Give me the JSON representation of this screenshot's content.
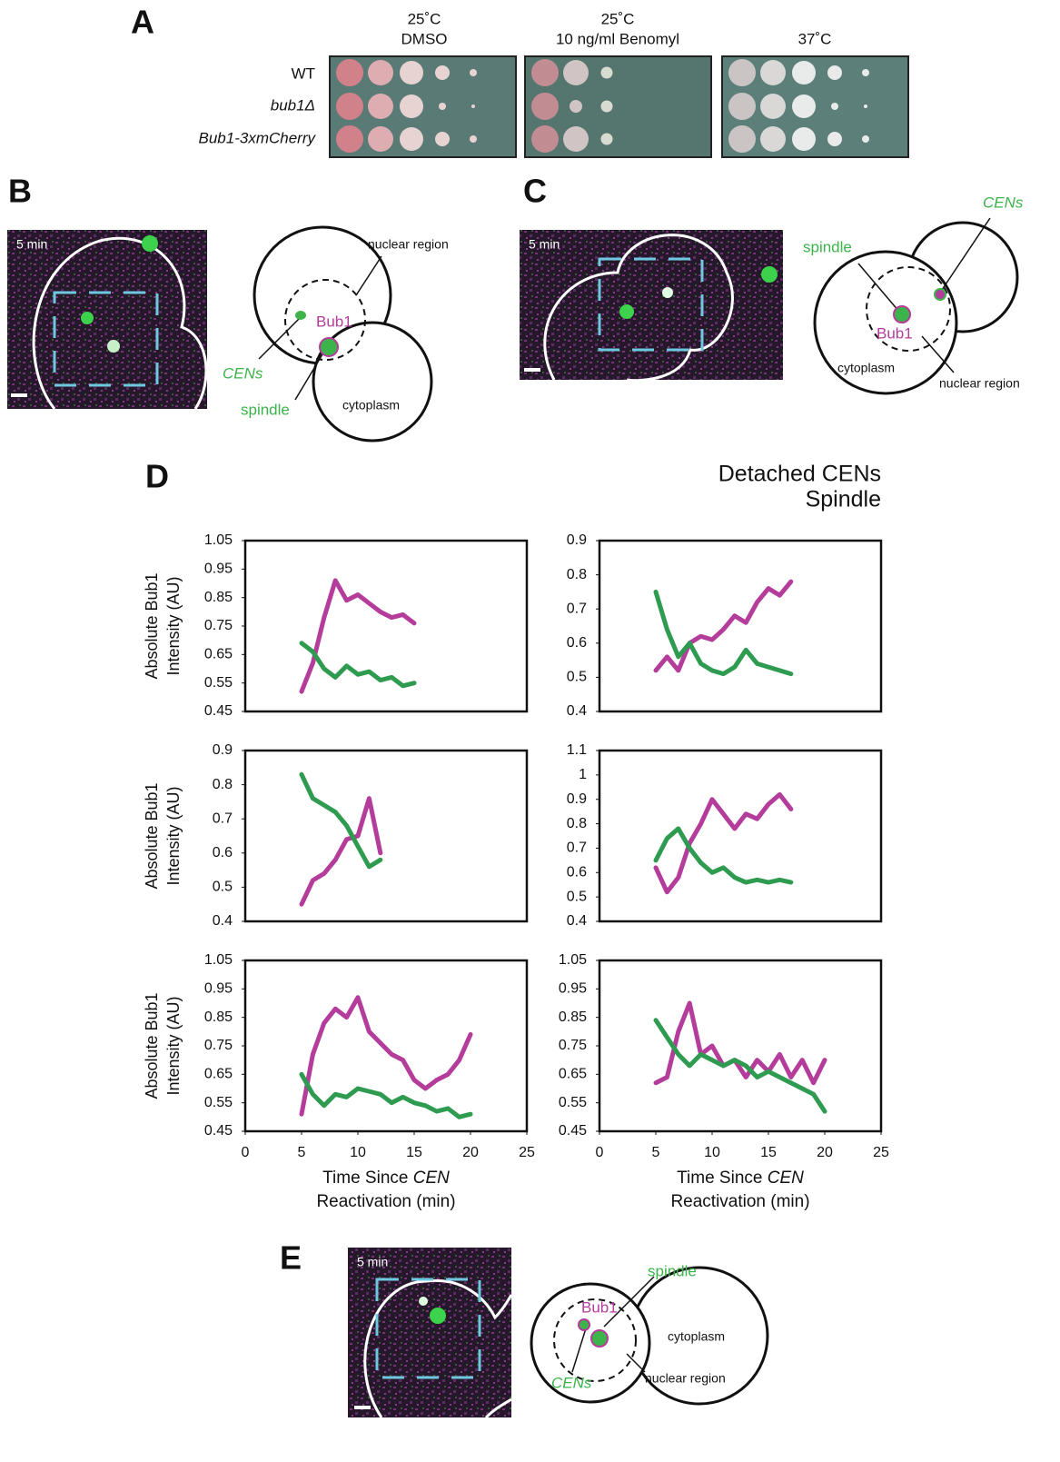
{
  "panel_A": {
    "label": "A",
    "columns": [
      [
        "25˚C",
        "DMSO"
      ],
      [
        "25˚C",
        "10 ng/ml Benomyl"
      ],
      [
        "37˚C"
      ]
    ],
    "rows": [
      "WT",
      "bub1Δ",
      "Bub1-3xmCherry"
    ]
  },
  "panel_B": {
    "label": "B",
    "time": "5 min",
    "nuclear": "nuclear region",
    "bub1": "Bub1",
    "cens": "CENs",
    "spindle": "spindle",
    "cytoplasm": "cytoplasm"
  },
  "panel_C": {
    "label": "C",
    "time": "5 min",
    "cens": "CENs",
    "spindle": "spindle",
    "bub1": "Bub1",
    "cytoplasm": "cytoplasm",
    "nuclear": "nuclear region"
  },
  "panel_D": {
    "label": "D"
  },
  "panel_E": {
    "label": "E",
    "time": "5 min",
    "spindle": "spindle",
    "bub1": "Bub1",
    "cytoplasm": "cytoplasm",
    "cens": "CENs",
    "nuclear": "nuclear region"
  },
  "chart_data": [
    {
      "type": "line",
      "y_label": [
        "Absolute Bub1",
        "Intensity (AU)"
      ],
      "xlim": [
        0,
        25
      ],
      "ylim": [
        0.45,
        1.05
      ],
      "yticks": [
        0.45,
        0.55,
        0.65,
        0.75,
        0.85,
        0.95,
        1.05
      ],
      "x": [
        5,
        6,
        7,
        8,
        9,
        10,
        11,
        12,
        13,
        14,
        15
      ],
      "series": [
        {
          "name": "Detached CENs",
          "color": "#b43c9a",
          "values": [
            0.52,
            0.62,
            0.78,
            0.91,
            0.84,
            0.86,
            0.83,
            0.8,
            0.78,
            0.79,
            0.76
          ]
        },
        {
          "name": "Spindle",
          "color": "#2e9b50",
          "values": [
            0.69,
            0.66,
            0.6,
            0.57,
            0.61,
            0.58,
            0.59,
            0.56,
            0.57,
            0.54,
            0.55
          ]
        }
      ]
    },
    {
      "type": "line",
      "xlim": [
        0,
        25
      ],
      "ylim": [
        0.4,
        0.9
      ],
      "yticks": [
        0.4,
        0.5,
        0.6,
        0.7,
        0.8,
        0.9
      ],
      "x": [
        5,
        6,
        7,
        8,
        9,
        10,
        11,
        12,
        13,
        14,
        15,
        16,
        17
      ],
      "series": [
        {
          "name": "Detached CENs",
          "color": "#b43c9a",
          "values": [
            0.52,
            0.56,
            0.52,
            0.6,
            0.62,
            0.61,
            0.64,
            0.68,
            0.66,
            0.72,
            0.76,
            0.74,
            0.78
          ]
        },
        {
          "name": "Spindle",
          "color": "#2e9b50",
          "values": [
            0.75,
            0.64,
            0.56,
            0.6,
            0.54,
            0.52,
            0.51,
            0.53,
            0.58,
            0.54,
            0.53,
            0.52,
            0.51
          ]
        }
      ]
    },
    {
      "type": "line",
      "y_label": [
        "Absolute Bub1",
        "Intensity (AU)"
      ],
      "xlim": [
        0,
        25
      ],
      "ylim": [
        0.4,
        0.9
      ],
      "yticks": [
        0.4,
        0.5,
        0.6,
        0.7,
        0.8,
        0.9
      ],
      "x": [
        5,
        6,
        7,
        8,
        9,
        10,
        11,
        12
      ],
      "series": [
        {
          "name": "Detached CENs",
          "color": "#b43c9a",
          "values": [
            0.45,
            0.52,
            0.54,
            0.58,
            0.64,
            0.65,
            0.76,
            0.6
          ]
        },
        {
          "name": "Spindle",
          "color": "#2e9b50",
          "values": [
            0.83,
            0.76,
            0.74,
            0.72,
            0.68,
            0.62,
            0.56,
            0.58
          ]
        }
      ]
    },
    {
      "type": "line",
      "xlim": [
        0,
        25
      ],
      "ylim": [
        0.4,
        1.1
      ],
      "yticks": [
        0.4,
        0.5,
        0.6,
        0.7,
        0.8,
        0.9,
        1,
        1.1
      ],
      "x": [
        5,
        6,
        7,
        8,
        9,
        10,
        11,
        12,
        13,
        14,
        15,
        16,
        17
      ],
      "series": [
        {
          "name": "Detached CENs",
          "color": "#b43c9a",
          "values": [
            0.62,
            0.52,
            0.58,
            0.72,
            0.8,
            0.9,
            0.84,
            0.78,
            0.84,
            0.82,
            0.88,
            0.92,
            0.86
          ]
        },
        {
          "name": "Spindle",
          "color": "#2e9b50",
          "values": [
            0.65,
            0.74,
            0.78,
            0.7,
            0.64,
            0.6,
            0.62,
            0.58,
            0.56,
            0.57,
            0.56,
            0.57,
            0.56
          ]
        }
      ]
    },
    {
      "type": "line",
      "y_label": [
        "Absolute Bub1",
        "Intensity (AU)"
      ],
      "x_label": [
        "Time Since ",
        "CEN",
        "Reactivation (min)"
      ],
      "xlim": [
        0,
        25
      ],
      "xticks": [
        0,
        5,
        10,
        15,
        20,
        25
      ],
      "ylim": [
        0.45,
        1.05
      ],
      "yticks": [
        0.45,
        0.55,
        0.65,
        0.75,
        0.85,
        0.95,
        1.05
      ],
      "x": [
        5,
        6,
        7,
        8,
        9,
        10,
        11,
        12,
        13,
        14,
        15,
        16,
        17,
        18,
        19,
        20
      ],
      "series": [
        {
          "name": "Detached CENs",
          "color": "#b43c9a",
          "values": [
            0.51,
            0.72,
            0.83,
            0.88,
            0.85,
            0.92,
            0.8,
            0.76,
            0.72,
            0.7,
            0.63,
            0.6,
            0.63,
            0.65,
            0.7,
            0.79
          ]
        },
        {
          "name": "Spindle",
          "color": "#2e9b50",
          "values": [
            0.65,
            0.58,
            0.54,
            0.58,
            0.57,
            0.6,
            0.59,
            0.58,
            0.55,
            0.57,
            0.55,
            0.54,
            0.52,
            0.53,
            0.5,
            0.51
          ]
        }
      ]
    },
    {
      "type": "line",
      "x_label": [
        "Time Since ",
        "CEN",
        "Reactivation (min)"
      ],
      "xlim": [
        0,
        25
      ],
      "xticks": [
        0,
        5,
        10,
        15,
        20,
        25
      ],
      "ylim": [
        0.45,
        1.05
      ],
      "yticks": [
        0.45,
        0.55,
        0.65,
        0.75,
        0.85,
        0.95,
        1.05
      ],
      "x": [
        5,
        6,
        7,
        8,
        9,
        10,
        11,
        12,
        13,
        14,
        15,
        16,
        17,
        18,
        19,
        20
      ],
      "series": [
        {
          "name": "Detached CENs",
          "color": "#b43c9a",
          "values": [
            0.62,
            0.64,
            0.8,
            0.9,
            0.72,
            0.75,
            0.68,
            0.7,
            0.64,
            0.7,
            0.66,
            0.72,
            0.64,
            0.7,
            0.62,
            0.7
          ]
        },
        {
          "name": "Spindle",
          "color": "#2e9b50",
          "values": [
            0.84,
            0.78,
            0.72,
            0.68,
            0.72,
            0.7,
            0.68,
            0.7,
            0.68,
            0.64,
            0.66,
            0.64,
            0.62,
            0.6,
            0.58,
            0.52
          ]
        }
      ]
    }
  ]
}
